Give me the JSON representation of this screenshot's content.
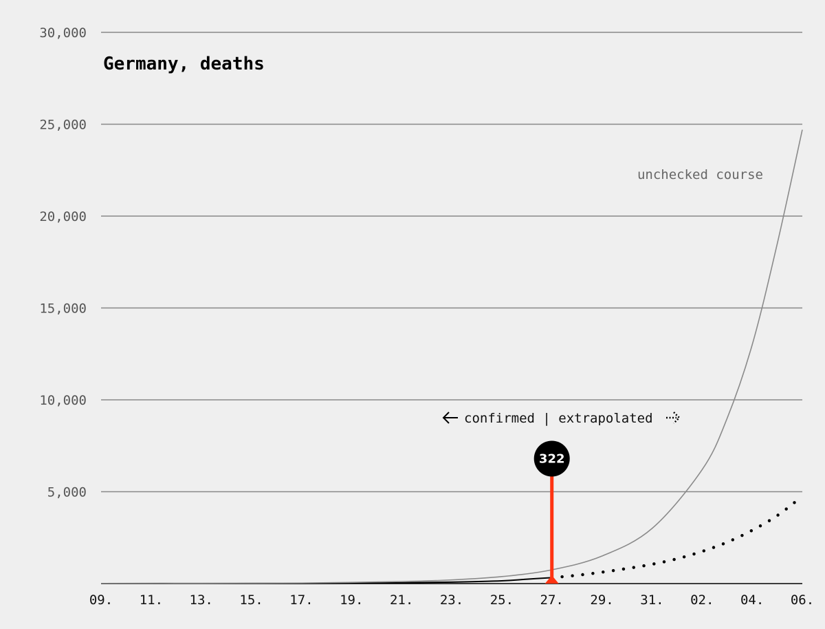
{
  "chart_data": {
    "type": "line",
    "title": "Germany, deaths",
    "xlabel": "",
    "ylabel": "",
    "x_tick_labels": [
      "09.",
      "11.",
      "13.",
      "15.",
      "17.",
      "19.",
      "21.",
      "23.",
      "25.",
      "27.",
      "29.",
      "31.",
      "02.",
      "04.",
      "06."
    ],
    "x_range_days": [
      0,
      28
    ],
    "ylim": [
      0,
      30000
    ],
    "y_ticks": [
      0,
      5000,
      10000,
      15000,
      20000,
      25000,
      30000
    ],
    "y_tick_labels": [
      "",
      "5,000",
      "10,000",
      "15,000",
      "20,000",
      "25,000",
      "30,000"
    ],
    "grid": "horizontal",
    "series": [
      {
        "name": "",
        "style": "solid-black",
        "x": [
          0,
          4,
          8,
          10,
          12,
          14,
          16,
          17,
          18
        ],
        "y": [
          2,
          5,
          10,
          20,
          40,
          80,
          150,
          240,
          322
        ]
      },
      {
        "name": "",
        "style": "dotted-black",
        "x": [
          18,
          19,
          20,
          21,
          22,
          23,
          24,
          25,
          26,
          27,
          28
        ],
        "y": [
          322,
          450,
          620,
          820,
          1050,
          1350,
          1750,
          2250,
          2900,
          3700,
          4750
        ]
      },
      {
        "name": "unchecked course",
        "style": "solid-gray",
        "x": [
          0,
          4,
          8,
          12,
          14,
          16,
          18,
          20,
          22,
          24,
          25,
          26,
          27,
          28
        ],
        "y": [
          2,
          8,
          30,
          110,
          200,
          380,
          750,
          1500,
          3000,
          6200,
          9000,
          13000,
          18500,
          24700
        ]
      }
    ],
    "annotations": {
      "marker_value": "322",
      "marker_x": 18,
      "marker_y": 6800,
      "split_label": "confirmed | extrapolated",
      "course_label": "unchecked course"
    },
    "colors": {
      "background": "#efefef",
      "grid": "#888888",
      "confirmed": "#000000",
      "extrapolated": "#000000",
      "unchecked": "#8a8a8a",
      "marker_line": "#ff3311",
      "marker_circle": "#000000"
    }
  }
}
